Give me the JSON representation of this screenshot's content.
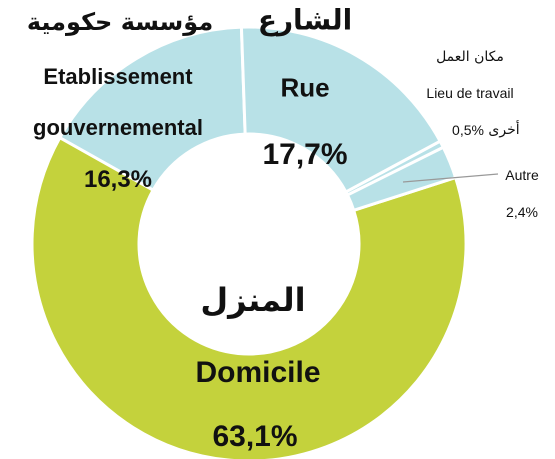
{
  "chart_data": {
    "type": "pie",
    "donut": true,
    "categories": [
      "Rue",
      "Lieu de travail",
      "Autre",
      "Domicile",
      "Etablissement gouvernemental"
    ],
    "arabic_labels": [
      "الشارع",
      "مكان العمل",
      "أخرى",
      "المنزل",
      "مؤسسة حكومية"
    ],
    "values": [
      17.7,
      0.5,
      2.4,
      63.1,
      16.3
    ],
    "value_labels": [
      "17,7%",
      "0,5%",
      "2,4%",
      "63,1%",
      "16,3%"
    ],
    "colors": [
      "#b8e1e7",
      "#b8e1e7",
      "#b8e1e7",
      "#c4d23c",
      "#b8e1e7"
    ]
  }
}
